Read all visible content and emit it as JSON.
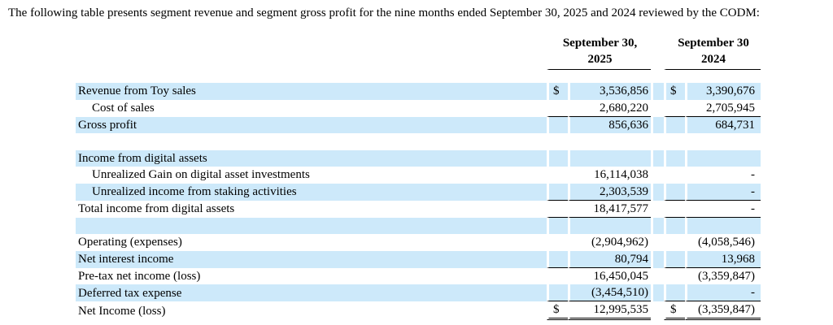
{
  "intro": "The following table presents segment revenue and segment gross profit for the nine months ended September 30, 2025 and 2024 reviewed by the CODM:",
  "colors": {
    "row_highlight": "#cde9fa",
    "text": "#000000",
    "background": "#ffffff"
  },
  "table": {
    "col_headers": [
      {
        "line1": "September 30,",
        "line2": "2025"
      },
      {
        "line1": "September 30",
        "line2": "2024"
      }
    ],
    "rows": [
      {
        "label": "Revenue from Toy sales",
        "d1": "$",
        "v1": "3,536,856",
        "d2": "$",
        "v2": "3,390,676"
      },
      {
        "label": "Cost of sales",
        "d1": "",
        "v1": "2,680,220",
        "d2": "",
        "v2": "2,705,945"
      },
      {
        "label": "Gross profit",
        "d1": "",
        "v1": "856,636",
        "d2": "",
        "v2": "684,731"
      },
      {
        "label": "",
        "d1": "",
        "v1": "",
        "d2": "",
        "v2": ""
      },
      {
        "label": "Income from digital assets",
        "d1": "",
        "v1": "",
        "d2": "",
        "v2": ""
      },
      {
        "label": "Unrealized Gain on digital asset investments",
        "d1": "",
        "v1": "16,114,038",
        "d2": "",
        "v2": "-"
      },
      {
        "label": "Unrealized income from staking activities",
        "d1": "",
        "v1": "2,303,539",
        "d2": "",
        "v2": "-"
      },
      {
        "label": "Total income from digital assets",
        "d1": "",
        "v1": "18,417,577",
        "d2": "",
        "v2": "-"
      },
      {
        "label": "",
        "d1": "",
        "v1": "",
        "d2": "",
        "v2": ""
      },
      {
        "label": "Operating (expenses)",
        "d1": "",
        "v1": "(2,904,962)",
        "d2": "",
        "v2": "(4,058,546)"
      },
      {
        "label": "Net interest income",
        "d1": "",
        "v1": "80,794",
        "d2": "",
        "v2": "13,968"
      },
      {
        "label": "Pre-tax net income (loss)",
        "d1": "",
        "v1": "16,450,045",
        "d2": "",
        "v2": "(3,359,847)"
      },
      {
        "label": "Deferred tax expense",
        "d1": "",
        "v1": "(3,454,510)",
        "d2": "",
        "v2": "-"
      },
      {
        "label": "Net Income (loss)",
        "d1": "$",
        "v1": "12,995,535",
        "d2": "$",
        "v2": "(3,359,847)"
      }
    ]
  }
}
